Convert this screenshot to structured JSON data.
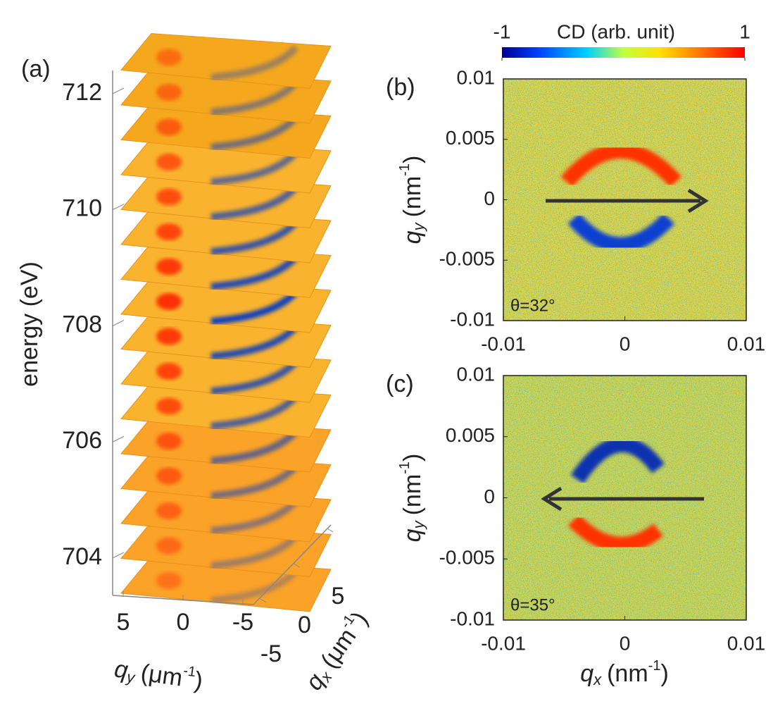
{
  "colorbar": {
    "label": "CD (arb. unit)",
    "ticks": [
      -1,
      1
    ]
  },
  "panel_a": {
    "label": "(a)",
    "zlabel": "energy (eV)",
    "zticks": [
      704,
      706,
      708,
      710,
      712
    ],
    "qyticks": [
      5,
      0,
      -5
    ],
    "qxticks": [
      -5,
      0,
      5
    ],
    "ylabel": {
      "symbol": "q",
      "sub": "y",
      "unit": "(μm",
      "sup": "-1",
      "close": ")"
    },
    "xlabel": {
      "symbol": "q",
      "sub": "x",
      "unit": "(μm",
      "sup": "-1",
      "close": ")"
    }
  },
  "panels": [
    {
      "label": "(b)",
      "annotation": "θ=32°",
      "xticks": [
        -0.01,
        0,
        0.01
      ],
      "yticks": [
        -0.01,
        -0.005,
        0,
        0.005,
        0.01
      ],
      "ylabel": {
        "symbol": "q",
        "sub": "y",
        "unit": "(nm",
        "sup": "-1",
        "close": ")"
      }
    },
    {
      "label": "(c)",
      "annotation": "θ=35°",
      "xticks": [
        -0.01,
        0,
        0.01
      ],
      "yticks": [
        -0.01,
        -0.005,
        0,
        0.005,
        0.01
      ],
      "ylabel": {
        "symbol": "q",
        "sub": "y",
        "unit": "(nm",
        "sup": "-1",
        "close": ")"
      },
      "xlabel": {
        "symbol": "q",
        "sub": "x",
        "unit": "(nm",
        "sup": "-1",
        "close": ")"
      }
    }
  ]
}
